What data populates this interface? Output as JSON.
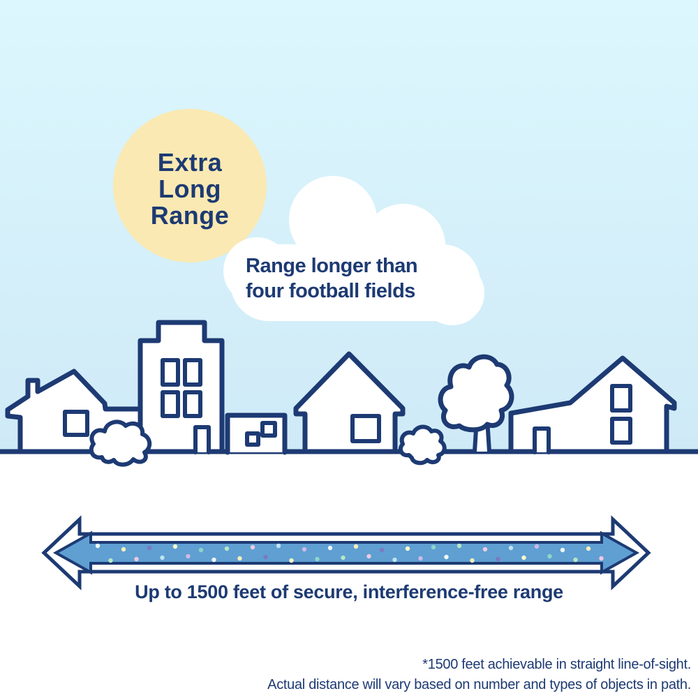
{
  "colors": {
    "navy": "#1d3a73",
    "sky_top": "#dcf7fd",
    "sky_bottom": "#cfeaf7",
    "sun_yellow": "#fae9b2",
    "arrow_blue": "#5f9fd2",
    "cloud_white": "#ffffff",
    "dot_colors": [
      "#eef8f6",
      "#b7e7c6",
      "#f4efbc",
      "#eec9e2",
      "#7b79c4",
      "#bfe3f2",
      "#f9f9c9",
      "#cdb9e6",
      "#8fd4c8"
    ]
  },
  "sun_badge": {
    "label": "Extra\nLong\nRange"
  },
  "cloud_callout": {
    "caption": "Range longer than\nfour football fields"
  },
  "range_arrow": {
    "caption": "Up to 1500 feet of secure, interference-free range"
  },
  "footnote": {
    "text": "*1500 feet achievable in straight line-of-sight.\nActual distance will vary based on number and types of objects in path."
  }
}
